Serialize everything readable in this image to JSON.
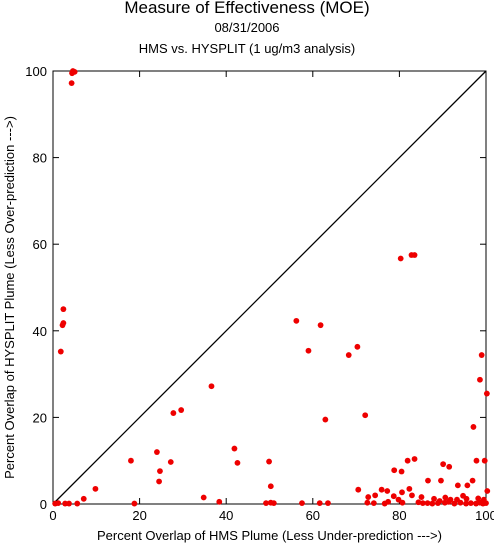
{
  "chart_data": {
    "type": "scatter",
    "title": "Measure of Effectiveness (MOE)",
    "date": "08/31/2006",
    "subtitle": "HMS vs. HYSPLIT  (1 ug/m3 analysis)",
    "xlabel": "Percent Overlap of HMS Plume (Less Under-prediction --->)",
    "ylabel": "Percent Overlap of HYSPLIT Plume (Less Over-prediction --->)",
    "xlim": [
      0,
      100
    ],
    "ylim": [
      0,
      100
    ],
    "xticks": [
      0,
      20,
      40,
      60,
      80,
      100
    ],
    "yticks": [
      0,
      20,
      40,
      60,
      80,
      100
    ],
    "grid": false,
    "reference_line": {
      "from": [
        0,
        0
      ],
      "to": [
        100,
        100
      ],
      "color": "#000000"
    },
    "marker_color": "#ee0000",
    "points": [
      [
        4.6,
        100
      ],
      [
        5.0,
        99.8
      ],
      [
        4.4,
        99.5
      ],
      [
        4.3,
        97.2
      ],
      [
        2.4,
        45.0
      ],
      [
        2.4,
        41.8
      ],
      [
        2.2,
        41.3
      ],
      [
        1.8,
        35.2
      ],
      [
        56.2,
        42.3
      ],
      [
        61.8,
        41.3
      ],
      [
        70.3,
        36.3
      ],
      [
        68.3,
        34.4
      ],
      [
        59.0,
        35.4
      ],
      [
        80.3,
        56.7
      ],
      [
        82.8,
        57.5
      ],
      [
        83.5,
        57.5
      ],
      [
        36.6,
        27.2
      ],
      [
        99.0,
        34.4
      ],
      [
        100.2,
        25.5
      ],
      [
        98.6,
        28.7
      ],
      [
        29.6,
        21.7
      ],
      [
        27.8,
        21.0
      ],
      [
        72.1,
        20.5
      ],
      [
        62.9,
        19.5
      ],
      [
        97.1,
        17.8
      ],
      [
        41.9,
        12.8
      ],
      [
        24.0,
        12.0
      ],
      [
        97.8,
        10.0
      ],
      [
        99.7,
        10.0
      ],
      [
        81.9,
        10.0
      ],
      [
        83.5,
        10.4
      ],
      [
        18.0,
        10.0
      ],
      [
        27.2,
        9.7
      ],
      [
        42.6,
        9.5
      ],
      [
        49.9,
        9.8
      ],
      [
        24.7,
        7.6
      ],
      [
        24.5,
        5.2
      ],
      [
        50.3,
        4.1
      ],
      [
        78.8,
        7.8
      ],
      [
        80.5,
        7.5
      ],
      [
        86.6,
        5.4
      ],
      [
        89.6,
        5.4
      ],
      [
        90.1,
        9.2
      ],
      [
        91.5,
        8.6
      ],
      [
        93.5,
        4.3
      ],
      [
        95.7,
        4.3
      ],
      [
        96.9,
        5.4
      ],
      [
        100.3,
        3.0
      ],
      [
        9.8,
        3.5
      ],
      [
        70.5,
        3.3
      ],
      [
        74.4,
        2.0
      ],
      [
        75.9,
        3.3
      ],
      [
        77.2,
        3.0
      ],
      [
        80.6,
        2.7
      ],
      [
        82.3,
        3.5
      ],
      [
        82.9,
        2.0
      ],
      [
        7.1,
        1.2
      ],
      [
        34.8,
        1.5
      ],
      [
        72.8,
        1.6
      ],
      [
        78.7,
        1.8
      ],
      [
        79.8,
        1.0
      ],
      [
        85.1,
        1.6
      ],
      [
        88.0,
        1.2
      ],
      [
        89.3,
        0.7
      ],
      [
        90.6,
        1.5
      ],
      [
        91.8,
        1.0
      ],
      [
        93.3,
        1.0
      ],
      [
        94.7,
        1.9
      ],
      [
        95.5,
        1.2
      ],
      [
        98.2,
        1.3
      ],
      [
        99.5,
        1.0
      ],
      [
        0.5,
        0.1
      ],
      [
        1.2,
        0.2
      ],
      [
        2.8,
        0.1
      ],
      [
        3.7,
        0.1
      ],
      [
        5.6,
        0.1
      ],
      [
        18.8,
        0.1
      ],
      [
        38.4,
        0.5
      ],
      [
        49.2,
        0.2
      ],
      [
        50.3,
        0.3
      ],
      [
        51.0,
        0.2
      ],
      [
        57.5,
        0.2
      ],
      [
        61.6,
        0.2
      ],
      [
        63.5,
        0.2
      ],
      [
        72.6,
        0.3
      ],
      [
        74.1,
        0.2
      ],
      [
        76.6,
        0.1
      ],
      [
        77.4,
        0.5
      ],
      [
        80.7,
        0.3
      ],
      [
        84.4,
        0.4
      ],
      [
        85.4,
        0.2
      ],
      [
        86.5,
        0.2
      ],
      [
        87.6,
        0.1
      ],
      [
        88.9,
        0.2
      ],
      [
        90.5,
        0.3
      ],
      [
        91.4,
        0.5
      ],
      [
        92.7,
        0.1
      ],
      [
        94.1,
        0.3
      ],
      [
        95.4,
        0.1
      ],
      [
        96.5,
        0.2
      ],
      [
        97.7,
        0.1
      ],
      [
        98.6,
        0.3
      ],
      [
        99.3,
        0.1
      ],
      [
        100.0,
        0.2
      ]
    ]
  }
}
